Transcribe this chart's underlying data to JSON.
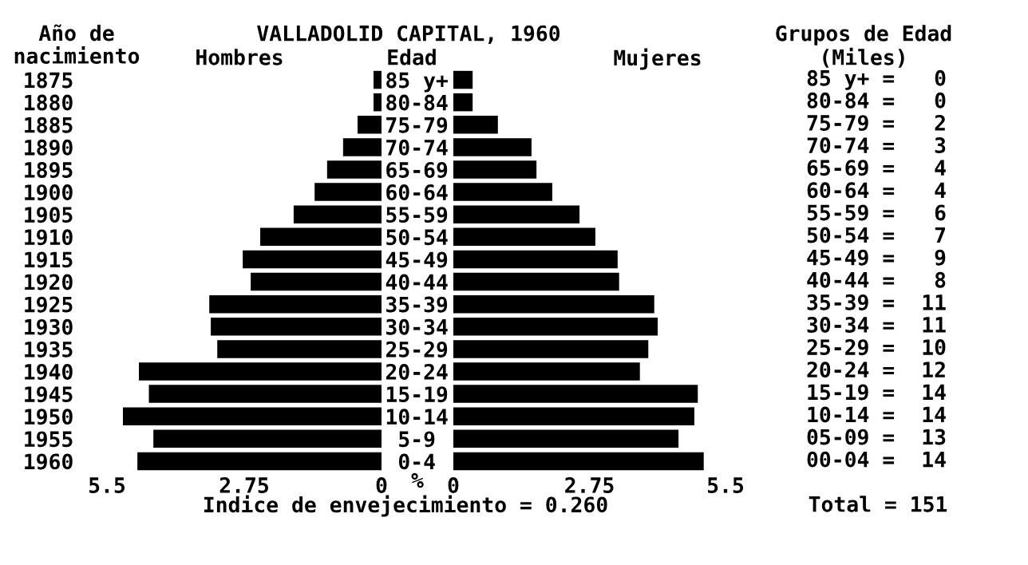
{
  "chart_data": [
    {
      "type": "bar",
      "orientation": "horizontal",
      "title": "VALLADOLID CAPITAL, 1960",
      "ylabel": "Año de\nnacimiento",
      "xlabel": "%",
      "categories": [
        "1875",
        "1880",
        "1885",
        "1890",
        "1895",
        "1900",
        "1905",
        "1910",
        "1915",
        "1920",
        "1925",
        "1930",
        "1935",
        "1940",
        "1945",
        "1950",
        "1955",
        "1960"
      ],
      "series": [
        {
          "name": "Hombres",
          "color": "#000000",
          "values": [
            0.16,
            0.16,
            0.48,
            0.77,
            1.09,
            1.34,
            1.76,
            2.43,
            2.78,
            2.62,
            3.45,
            3.42,
            3.29,
            4.86,
            4.66,
            5.18,
            4.57,
            4.89
          ]
        }
      ],
      "xlim": [
        5.5,
        0
      ],
      "xticks": [
        5.5,
        2.75,
        0
      ],
      "grid": false,
      "annotations": [
        "Indice de envejecimiento = 0.260"
      ]
    },
    {
      "type": "bar",
      "orientation": "horizontal",
      "ylabel": "Edad",
      "categories": [
        "85 y+",
        "80-84",
        "75-79",
        "70-74",
        "65-69",
        "60-64",
        "55-59",
        "50-54",
        "45-49",
        "40-44",
        "35-39",
        "30-34",
        "25-29",
        "20-24",
        "15-19",
        "10-14",
        "5-9",
        "0-4"
      ],
      "series": [
        {
          "name": "Mujeres",
          "color": "#000000",
          "values": [
            0.39,
            0.39,
            0.9,
            1.58,
            1.68,
            2.0,
            2.55,
            2.87,
            3.32,
            3.35,
            4.06,
            4.13,
            3.94,
            3.77,
            4.94,
            4.87,
            4.55,
            5.06
          ]
        }
      ],
      "xlim": [
        0,
        5.5
      ],
      "xticks": [
        0,
        2.75,
        5.5
      ],
      "grid": false
    },
    {
      "type": "other",
      "title": "Grupos de Edad",
      "subtitle": "(Miles)",
      "categories": [
        "85 y+ =",
        "80-84 =",
        "75-79 =",
        "70-74 =",
        "65-69 =",
        "60-64 =",
        "55-59 =",
        "50-54 =",
        "45-49 =",
        "40-44 =",
        "35-39 =",
        "30-34 =",
        "25-29 =",
        "20-24 =",
        "15-19 =",
        "10-14 =",
        "05-09 =",
        "00-04 ="
      ],
      "values": [
        0,
        0,
        2,
        3,
        4,
        4,
        6,
        7,
        9,
        8,
        11,
        11,
        10,
        12,
        14,
        14,
        13,
        14
      ],
      "data_labels": true,
      "annotations": [
        "Total = 151"
      ]
    }
  ]
}
